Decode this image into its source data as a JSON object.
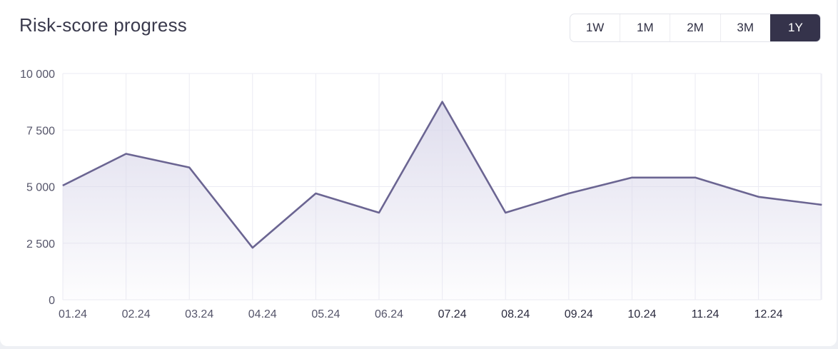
{
  "header": {
    "title": "Risk-score progress"
  },
  "range_selector": {
    "options": [
      "1W",
      "1M",
      "2M",
      "3M",
      "1Y"
    ],
    "selected": "1Y"
  },
  "colors": {
    "line": "#6b6592",
    "fill_top": "#d9d7ea",
    "grid": "#ebebf3",
    "tick_text": "#55556a",
    "active_button": "#35334b"
  },
  "chart_data": {
    "type": "area",
    "categories": [
      "01.24",
      "02.24",
      "03.24",
      "04.24",
      "05.24",
      "06.24",
      "07.24",
      "08.24",
      "09.24",
      "10.24",
      "11.24",
      "12.24",
      ""
    ],
    "x_labels": [
      "01.24",
      "02.24",
      "03.24",
      "04.24",
      "05.24",
      "06.24",
      "07.24",
      "08.24",
      "09.24",
      "10.24",
      "11.24",
      "12.24"
    ],
    "values": [
      5050,
      6450,
      5850,
      2300,
      4700,
      3850,
      8750,
      3850,
      4700,
      5400,
      5400,
      4550,
      4200
    ],
    "y_ticks": [
      "0",
      "2 500",
      "5 000",
      "7 500",
      "10 000"
    ],
    "y_tick_values": [
      0,
      2500,
      5000,
      7500,
      10000
    ],
    "ylim": [
      0,
      10000
    ],
    "grid": true,
    "title": "",
    "xlabel": "",
    "ylabel": ""
  }
}
